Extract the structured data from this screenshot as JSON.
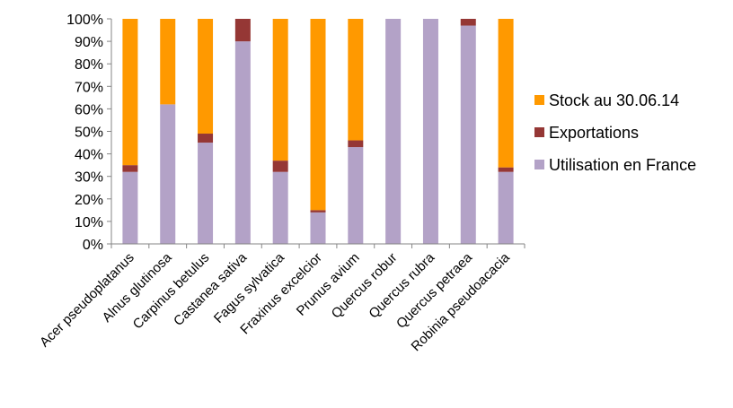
{
  "chart_data": {
    "type": "bar",
    "stacked": true,
    "percent": true,
    "title": "",
    "xlabel": "",
    "ylabel": "",
    "ylim": [
      0,
      100
    ],
    "yticks": [
      "0%",
      "10%",
      "20%",
      "30%",
      "40%",
      "50%",
      "60%",
      "70%",
      "80%",
      "90%",
      "100%"
    ],
    "grid": false,
    "legend_position": "right",
    "categories": [
      "Acer pseudoplatanus",
      "Alnus glutinosa",
      "Carpinus betulus",
      "Castanea sativa",
      "Fagus sylvatica",
      "Fraxinus excelcior",
      "Prunus avium",
      "Quercus robur",
      "Quercus rubra",
      "Quercus petraea",
      "Robinia pseudoacacia"
    ],
    "series": [
      {
        "name": "Utilisation en France",
        "color": "#b3a2c7",
        "values": [
          32,
          62,
          45,
          90,
          32,
          14,
          43,
          100,
          100,
          97,
          32
        ]
      },
      {
        "name": "Exportations",
        "color": "#953735",
        "values": [
          3,
          0,
          4,
          10,
          5,
          1,
          3,
          0,
          0,
          3,
          2
        ]
      },
      {
        "name": "Stock au 30.06.14",
        "color": "#ff9900",
        "values": [
          65,
          38,
          51,
          0,
          63,
          85,
          54,
          0,
          0,
          0,
          66
        ]
      }
    ],
    "legend_order": [
      "Stock au 30.06.14",
      "Exportations",
      "Utilisation en France"
    ]
  }
}
